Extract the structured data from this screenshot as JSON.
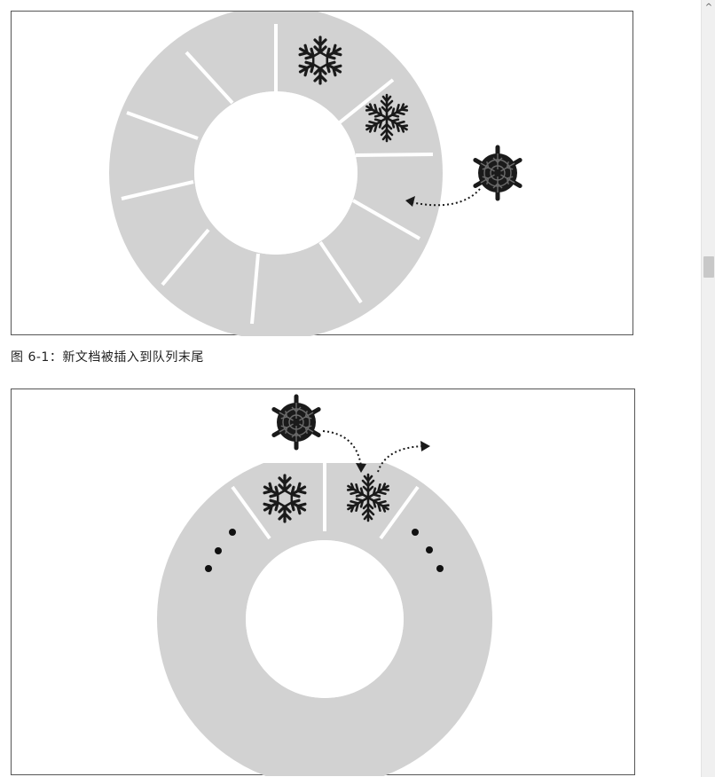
{
  "document": {
    "figure1_caption": "图 6-1：新文档被插入到队列末尾"
  },
  "colors": {
    "segment_fill": "#d2d2d2",
    "frame_border": "#555555",
    "snowflake": "#1a1a1a"
  },
  "icons": {
    "scroll_up": "^",
    "snowflake": "snowflake-icon",
    "arrow": "dotted-arrow"
  }
}
